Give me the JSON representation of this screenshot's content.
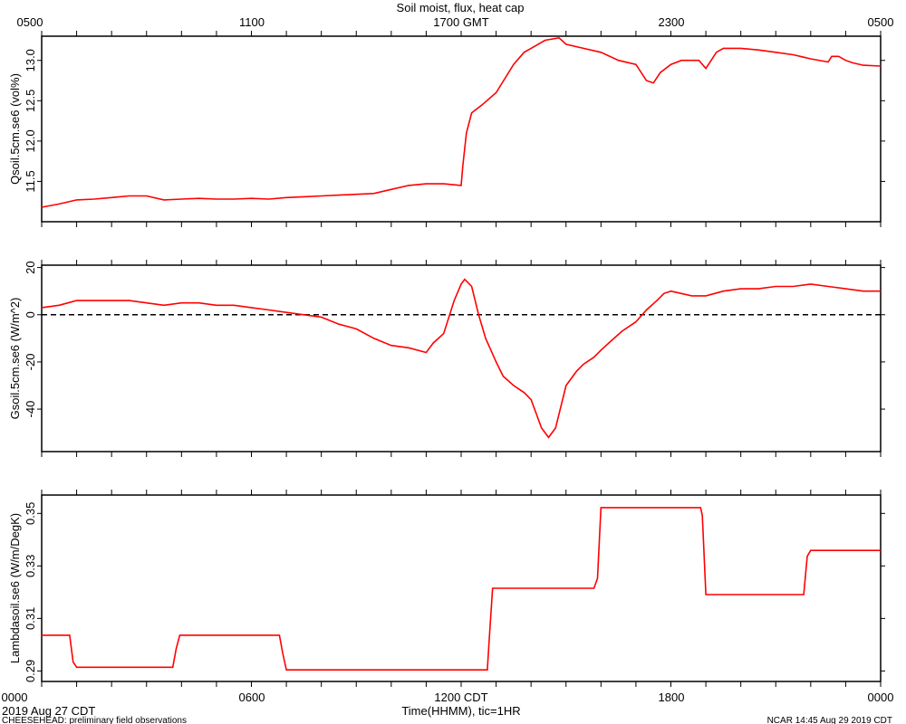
{
  "title": "Soil moist, flux, heat cap",
  "top_axis_labels": [
    "0500",
    "1100",
    "1700 GMT",
    "2300",
    "0500"
  ],
  "bottom_axis_labels": [
    "0000",
    "0600",
    "1200 CDT",
    "1800",
    "0000"
  ],
  "xlabel": "Time(HHMM), tic=1HR",
  "start_date": "2019 Aug 27 CDT",
  "footer_left": "CHEESEHEAD: preliminary field observations",
  "footer_right": "NCAR 14:45 Aug 29 2019 CDT",
  "series_color": "#ff0000",
  "chart_data": [
    {
      "type": "line",
      "ylabel": "Qsoil.5cm.se6 (vol%)",
      "yticks": [
        "11.5",
        "12.0",
        "12.5",
        "13.0"
      ],
      "ylim": [
        11.0,
        13.3
      ],
      "xlim": [
        0,
        24
      ],
      "x": [
        0,
        0.5,
        1,
        1.5,
        2,
        2.5,
        3,
        3.5,
        4,
        4.5,
        5,
        5.5,
        6,
        6.5,
        7,
        7.5,
        8,
        8.5,
        9,
        9.5,
        10,
        10.5,
        11,
        11.5,
        12,
        12.05,
        12.15,
        12.3,
        12.6,
        13,
        13.5,
        13.8,
        14,
        14.4,
        14.8,
        15,
        15.5,
        16,
        16.5,
        17,
        17.3,
        17.5,
        17.7,
        18,
        18.3,
        18.8,
        19,
        19.3,
        19.5,
        20,
        20.5,
        21,
        21.5,
        22,
        22.5,
        22.6,
        22.8,
        23,
        23.2,
        23.5,
        24
      ],
      "y": [
        11.18,
        11.22,
        11.27,
        11.28,
        11.3,
        11.32,
        11.32,
        11.27,
        11.28,
        11.29,
        11.28,
        11.28,
        11.29,
        11.28,
        11.3,
        11.31,
        11.32,
        11.33,
        11.34,
        11.35,
        11.4,
        11.45,
        11.47,
        11.47,
        11.45,
        11.7,
        12.1,
        12.35,
        12.45,
        12.6,
        12.95,
        13.1,
        13.15,
        13.25,
        13.28,
        13.2,
        13.15,
        13.1,
        13.0,
        12.95,
        12.75,
        12.72,
        12.85,
        12.95,
        13.0,
        13.0,
        12.9,
        13.1,
        13.15,
        13.15,
        13.13,
        13.1,
        13.07,
        13.02,
        12.98,
        13.05,
        13.05,
        13.0,
        12.97,
        12.94,
        12.93
      ]
    },
    {
      "type": "line",
      "ylabel": "Gsoil.5cm.se6 (W/m^2)",
      "yticks": [
        "20",
        "0",
        "-20",
        "-40"
      ],
      "ylim": [
        -58,
        21
      ],
      "xlim": [
        0,
        24
      ],
      "zero_line": true,
      "x": [
        0,
        0.5,
        1,
        1.5,
        2,
        2.5,
        3,
        3.5,
        4,
        4.5,
        5,
        5.5,
        6,
        6.5,
        7,
        7.5,
        8,
        8.5,
        9,
        9.5,
        10,
        10.5,
        11,
        11.2,
        11.5,
        11.8,
        12,
        12.1,
        12.3,
        12.5,
        12.7,
        13,
        13.2,
        13.5,
        13.8,
        14,
        14.3,
        14.5,
        14.7,
        15,
        15.3,
        15.5,
        15.8,
        16,
        16.3,
        16.6,
        17,
        17.3,
        17.6,
        17.8,
        18,
        18.3,
        18.6,
        19,
        19.5,
        20,
        20.5,
        21,
        21.5,
        22,
        22.5,
        23,
        23.5,
        24
      ],
      "y": [
        3,
        4,
        6,
        6,
        6,
        6,
        5,
        4,
        5,
        5,
        4,
        4,
        3,
        2,
        1,
        0,
        -1,
        -4,
        -6,
        -10,
        -13,
        -14,
        -16,
        -12,
        -8,
        6,
        13,
        15,
        12,
        0,
        -10,
        -20,
        -26,
        -30,
        -33,
        -36,
        -48,
        -52,
        -48,
        -30,
        -24,
        -21,
        -18,
        -15,
        -11,
        -7,
        -3,
        2,
        6,
        9,
        10,
        9,
        8,
        8,
        10,
        11,
        11,
        12,
        12,
        13,
        12,
        11,
        10,
        10
      ]
    },
    {
      "type": "line",
      "ylabel": "Lambdasoil.se6 (W/m/DegK)",
      "yticks": [
        "0.29",
        "0.31",
        "0.33",
        "0.35"
      ],
      "ylim": [
        0.286,
        0.357
      ],
      "xlim": [
        0,
        24
      ],
      "x": [
        0,
        0.8,
        0.9,
        1.0,
        3.75,
        3.85,
        3.95,
        6.8,
        6.9,
        7.0,
        12.75,
        12.8,
        12.9,
        15.8,
        15.9,
        16.0,
        18.85,
        18.9,
        19.0,
        21.8,
        21.9,
        22.0,
        24
      ],
      "y": [
        0.3036,
        0.3036,
        0.2934,
        0.2914,
        0.2914,
        0.2985,
        0.3036,
        0.3036,
        0.2965,
        0.2904,
        0.2904,
        0.3015,
        0.3215,
        0.3215,
        0.3253,
        0.3522,
        0.3522,
        0.3491,
        0.3191,
        0.3191,
        0.3337,
        0.3359,
        0.3359
      ]
    }
  ]
}
